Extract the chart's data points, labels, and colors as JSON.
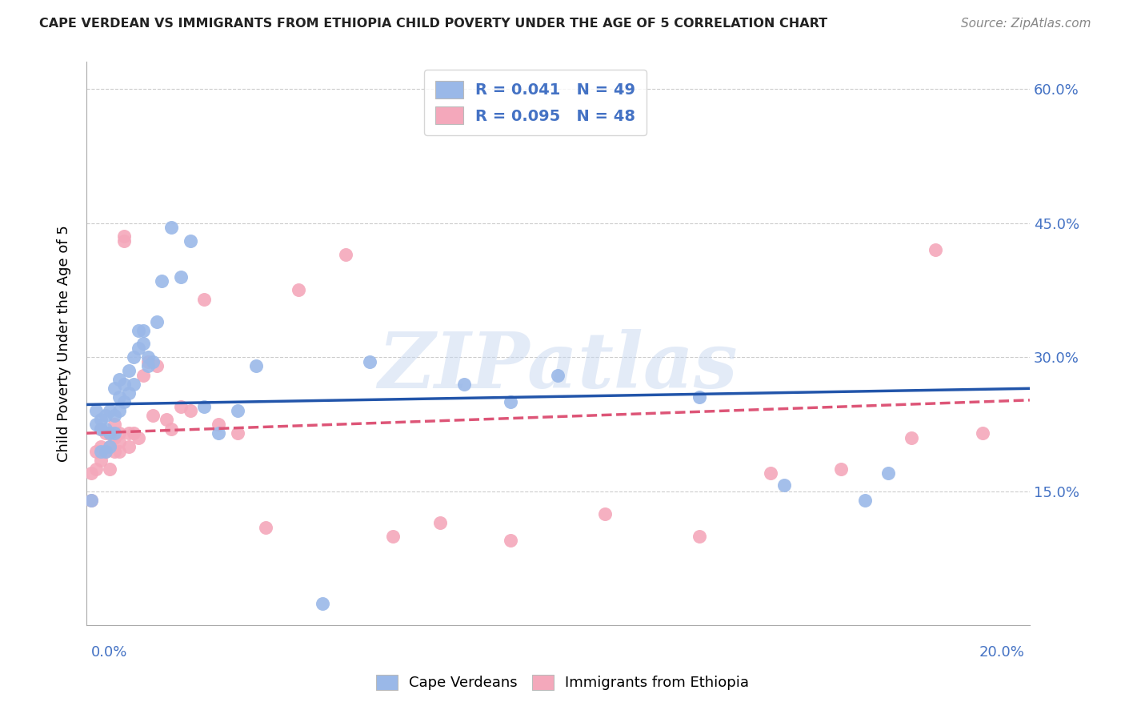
{
  "title": "CAPE VERDEAN VS IMMIGRANTS FROM ETHIOPIA CHILD POVERTY UNDER THE AGE OF 5 CORRELATION CHART",
  "source": "Source: ZipAtlas.com",
  "ylabel": "Child Poverty Under the Age of 5",
  "yticks": [
    0.0,
    0.15,
    0.3,
    0.45,
    0.6
  ],
  "ytick_labels": [
    "",
    "15.0%",
    "30.0%",
    "45.0%",
    "60.0%"
  ],
  "xmin": 0.0,
  "xmax": 0.2,
  "ymin": 0.0,
  "ymax": 0.63,
  "blue_R": 0.041,
  "blue_N": 49,
  "pink_R": 0.095,
  "pink_N": 48,
  "legend_label_blue": "Cape Verdeans",
  "legend_label_pink": "Immigrants from Ethiopia",
  "blue_color": "#9ab8e8",
  "pink_color": "#f4a8bb",
  "blue_line_color": "#2255aa",
  "pink_line_color": "#dd5577",
  "watermark": "ZIPatlas",
  "blue_line_x0": 0.0,
  "blue_line_y0": 0.247,
  "blue_line_x1": 0.2,
  "blue_line_y1": 0.265,
  "pink_line_x0": 0.0,
  "pink_line_y0": 0.215,
  "pink_line_x1": 0.2,
  "pink_line_y1": 0.252,
  "blue_scatter_x": [
    0.001,
    0.002,
    0.002,
    0.003,
    0.003,
    0.003,
    0.004,
    0.004,
    0.004,
    0.005,
    0.005,
    0.005,
    0.006,
    0.006,
    0.006,
    0.007,
    0.007,
    0.007,
    0.008,
    0.008,
    0.009,
    0.009,
    0.01,
    0.01,
    0.011,
    0.011,
    0.012,
    0.012,
    0.013,
    0.013,
    0.014,
    0.015,
    0.016,
    0.018,
    0.02,
    0.022,
    0.025,
    0.028,
    0.032,
    0.036,
    0.05,
    0.06,
    0.08,
    0.09,
    0.1,
    0.13,
    0.148,
    0.165,
    0.17
  ],
  "blue_scatter_y": [
    0.14,
    0.225,
    0.24,
    0.195,
    0.22,
    0.23,
    0.195,
    0.22,
    0.235,
    0.2,
    0.215,
    0.24,
    0.215,
    0.235,
    0.265,
    0.24,
    0.255,
    0.275,
    0.25,
    0.27,
    0.26,
    0.285,
    0.27,
    0.3,
    0.31,
    0.33,
    0.33,
    0.315,
    0.29,
    0.3,
    0.295,
    0.34,
    0.385,
    0.445,
    0.39,
    0.43,
    0.245,
    0.215,
    0.24,
    0.29,
    0.025,
    0.295,
    0.27,
    0.25,
    0.28,
    0.255,
    0.157,
    0.14,
    0.17
  ],
  "pink_scatter_x": [
    0.001,
    0.001,
    0.002,
    0.002,
    0.003,
    0.003,
    0.003,
    0.004,
    0.004,
    0.005,
    0.005,
    0.005,
    0.006,
    0.006,
    0.006,
    0.007,
    0.007,
    0.007,
    0.008,
    0.008,
    0.009,
    0.009,
    0.01,
    0.011,
    0.012,
    0.013,
    0.014,
    0.015,
    0.017,
    0.018,
    0.02,
    0.022,
    0.025,
    0.028,
    0.032,
    0.038,
    0.045,
    0.055,
    0.065,
    0.075,
    0.09,
    0.11,
    0.13,
    0.145,
    0.16,
    0.175,
    0.18,
    0.19
  ],
  "pink_scatter_y": [
    0.14,
    0.17,
    0.175,
    0.195,
    0.185,
    0.2,
    0.22,
    0.195,
    0.215,
    0.175,
    0.2,
    0.215,
    0.195,
    0.21,
    0.225,
    0.205,
    0.215,
    0.195,
    0.43,
    0.435,
    0.2,
    0.215,
    0.215,
    0.21,
    0.28,
    0.295,
    0.235,
    0.29,
    0.23,
    0.22,
    0.245,
    0.24,
    0.365,
    0.225,
    0.215,
    0.11,
    0.375,
    0.415,
    0.1,
    0.115,
    0.095,
    0.125,
    0.1,
    0.17,
    0.175,
    0.21,
    0.42,
    0.215
  ]
}
